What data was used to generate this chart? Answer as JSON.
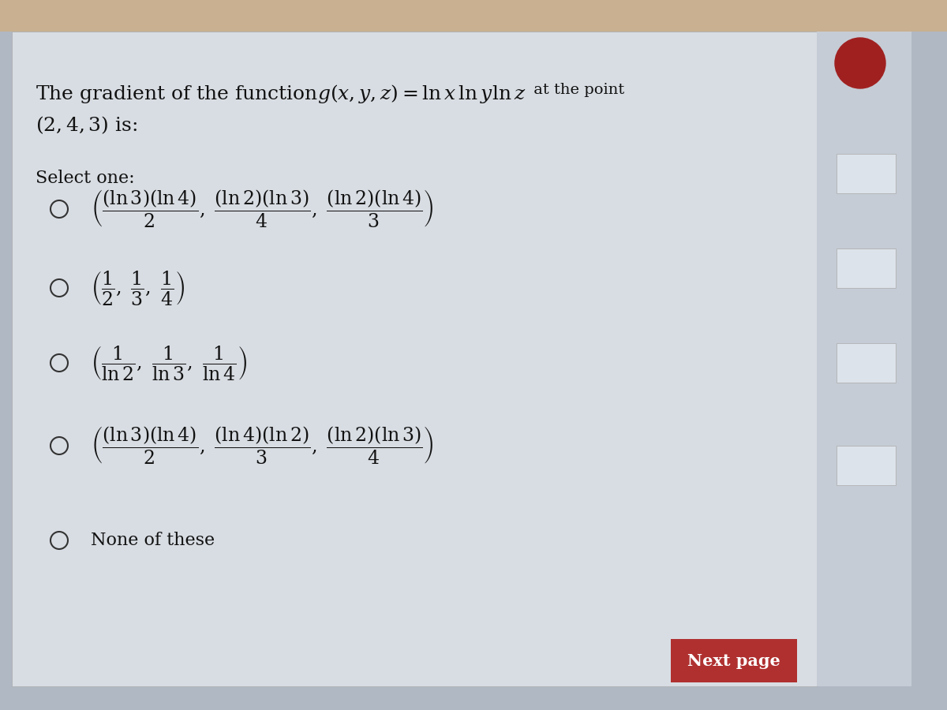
{
  "bg_outer": "#b0b8c4",
  "bg_card": "#d8dde3",
  "title_plain": "The gradient of the function",
  "title_point": "(2, 4, 3) is:",
  "title_at_point": "at the point",
  "select_label": "Select one:",
  "option1": "$\\left(\\dfrac{(\\ln 3)(\\ln 4)}{2},\\ \\dfrac{(\\ln 2)(\\ln 3)}{4},\\ \\dfrac{(\\ln 2)(\\ln 4)}{3}\\right)$",
  "option2": "$\\left(\\dfrac{1}{2},\\ \\dfrac{1}{3},\\ \\dfrac{1}{4}\\right)$",
  "option3": "$\\left(\\dfrac{1}{\\ln 2},\\ \\dfrac{1}{\\ln 3},\\ \\dfrac{1}{\\ln 4}\\right)$",
  "option4": "$\\left(\\dfrac{(\\ln 3)(\\ln 4)}{2},\\ \\dfrac{(\\ln 4)(\\ln 2)}{3},\\ \\dfrac{(\\ln 2)(\\ln 3)}{4}\\right)$",
  "option5": "None of these",
  "next_btn_color": "#b03030",
  "next_btn_text": "Next page",
  "right_panel_color": "#a02020",
  "top_bar_color": "#c8b090"
}
